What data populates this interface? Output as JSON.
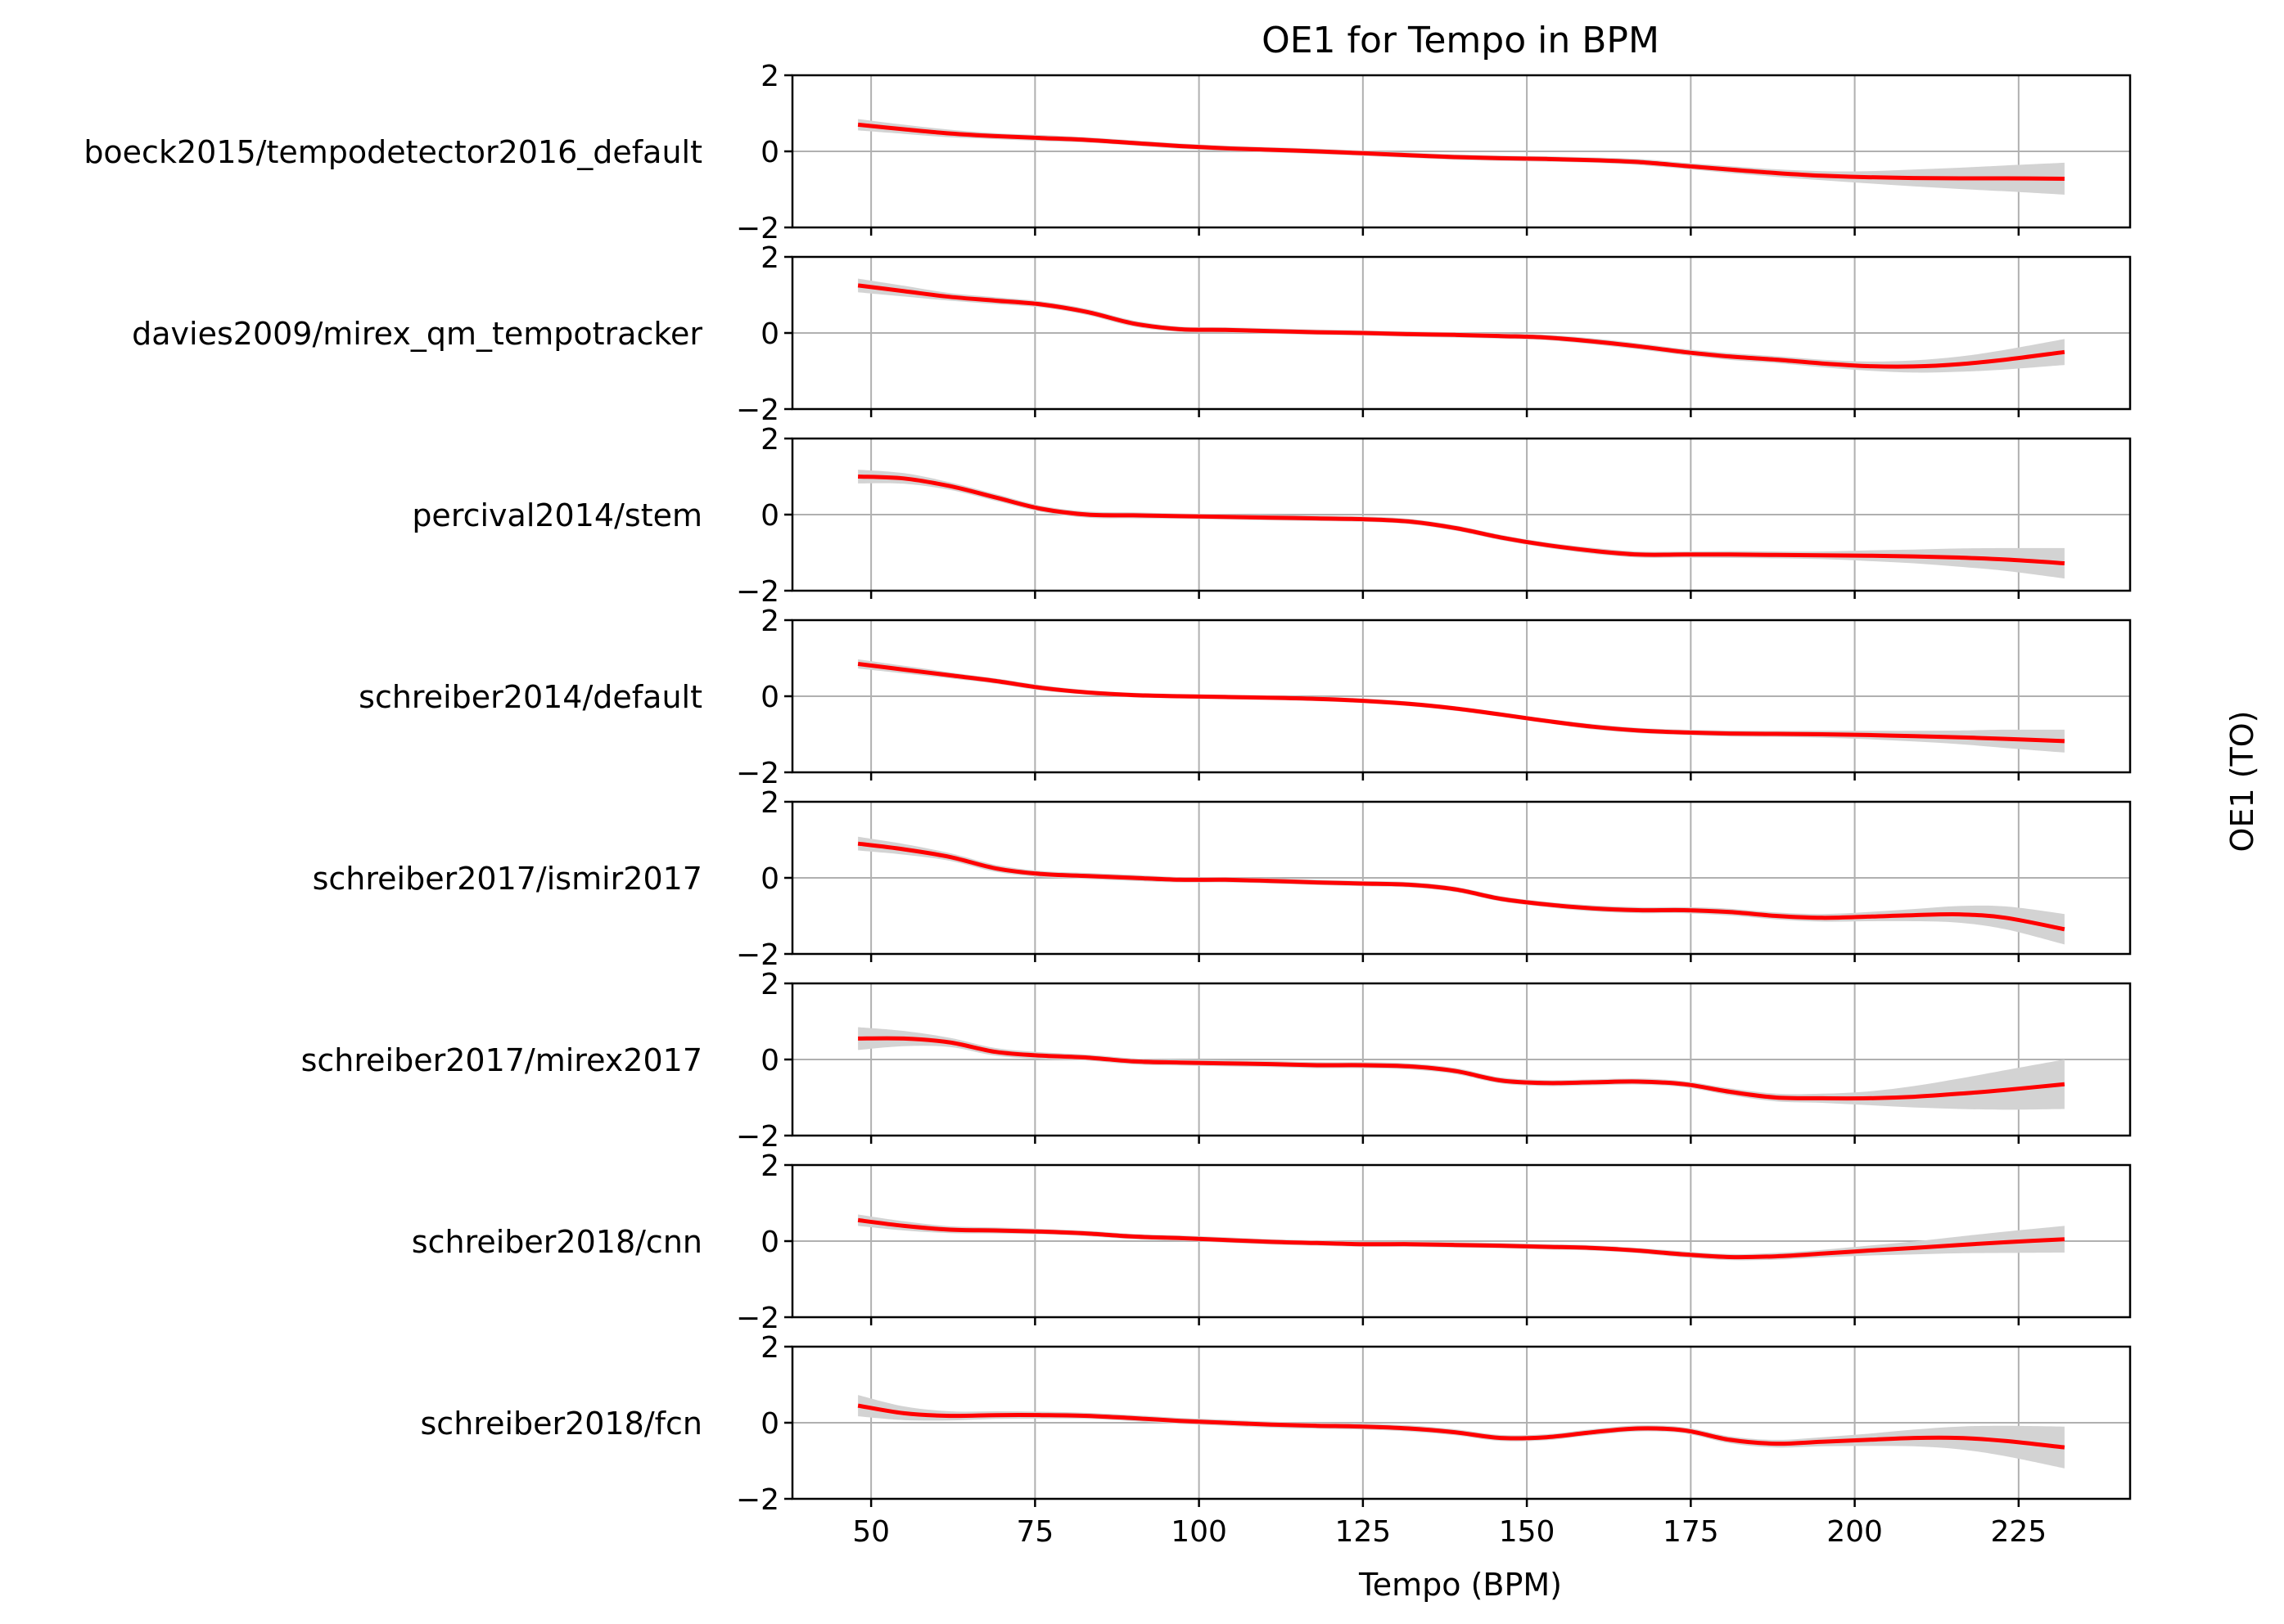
{
  "chart_data": {
    "type": "line",
    "title": "OE1 for Tempo in BPM",
    "xlabel": "Tempo (BPM)",
    "ylabel": "OE1 (TO)",
    "xlim": [
      38,
      242
    ],
    "ylim": [
      -2,
      2
    ],
    "xticks": [
      50,
      75,
      100,
      125,
      150,
      175,
      200,
      225
    ],
    "yticks": [
      -2,
      0,
      2
    ],
    "grid": true,
    "line_color": "#ff0000",
    "band_color": "#d3d3d3",
    "grid_color": "#b0b0b0",
    "x": [
      48,
      55,
      62,
      69,
      76,
      83,
      90,
      97,
      104,
      111,
      118,
      125,
      132,
      139,
      146,
      153,
      160,
      167,
      174,
      181,
      188,
      195,
      202,
      209,
      216,
      223,
      232
    ],
    "panels": [
      {
        "name": "boeck2015/tempodetector2016_default",
        "y": [
          0.7,
          0.58,
          0.47,
          0.4,
          0.35,
          0.3,
          0.22,
          0.14,
          0.08,
          0.04,
          0.0,
          -0.05,
          -0.1,
          -0.15,
          -0.18,
          -0.2,
          -0.23,
          -0.28,
          -0.38,
          -0.48,
          -0.57,
          -0.64,
          -0.68,
          -0.7,
          -0.71,
          -0.71,
          -0.72
        ],
        "band": [
          0.15,
          0.12,
          0.1,
          0.08,
          0.08,
          0.07,
          0.07,
          0.07,
          0.07,
          0.07,
          0.07,
          0.07,
          0.07,
          0.07,
          0.07,
          0.07,
          0.07,
          0.08,
          0.08,
          0.09,
          0.1,
          0.12,
          0.16,
          0.22,
          0.28,
          0.34,
          0.42
        ]
      },
      {
        "name": "davies2009/mirex_qm_tempotracker",
        "y": [
          1.25,
          1.1,
          0.95,
          0.85,
          0.75,
          0.55,
          0.25,
          0.1,
          0.08,
          0.05,
          0.02,
          0.0,
          -0.03,
          -0.05,
          -0.08,
          -0.12,
          -0.22,
          -0.35,
          -0.5,
          -0.62,
          -0.7,
          -0.8,
          -0.87,
          -0.88,
          -0.82,
          -0.7,
          -0.5
        ],
        "band": [
          0.18,
          0.14,
          0.1,
          0.09,
          0.08,
          0.08,
          0.08,
          0.07,
          0.07,
          0.07,
          0.07,
          0.07,
          0.07,
          0.07,
          0.07,
          0.07,
          0.08,
          0.08,
          0.08,
          0.09,
          0.09,
          0.1,
          0.12,
          0.16,
          0.2,
          0.26,
          0.34
        ]
      },
      {
        "name": "percival2014/stem",
        "y": [
          1.0,
          0.95,
          0.75,
          0.45,
          0.15,
          0.0,
          -0.02,
          -0.04,
          -0.06,
          -0.08,
          -0.1,
          -0.12,
          -0.18,
          -0.35,
          -0.6,
          -0.8,
          -0.95,
          -1.05,
          -1.05,
          -1.05,
          -1.06,
          -1.07,
          -1.08,
          -1.1,
          -1.13,
          -1.18,
          -1.28
        ],
        "band": [
          0.18,
          0.14,
          0.1,
          0.09,
          0.08,
          0.08,
          0.08,
          0.07,
          0.07,
          0.07,
          0.07,
          0.07,
          0.07,
          0.07,
          0.07,
          0.07,
          0.08,
          0.08,
          0.08,
          0.09,
          0.09,
          0.1,
          0.14,
          0.18,
          0.24,
          0.3,
          0.4
        ]
      },
      {
        "name": "schreiber2014/default",
        "y": [
          0.85,
          0.7,
          0.55,
          0.4,
          0.22,
          0.1,
          0.03,
          0.0,
          -0.02,
          -0.04,
          -0.07,
          -0.12,
          -0.2,
          -0.32,
          -0.48,
          -0.65,
          -0.8,
          -0.9,
          -0.95,
          -0.98,
          -0.99,
          -1.0,
          -1.02,
          -1.05,
          -1.08,
          -1.12,
          -1.18
        ],
        "band": [
          0.12,
          0.1,
          0.08,
          0.07,
          0.07,
          0.06,
          0.06,
          0.06,
          0.06,
          0.06,
          0.06,
          0.06,
          0.06,
          0.06,
          0.06,
          0.06,
          0.07,
          0.07,
          0.07,
          0.08,
          0.08,
          0.09,
          0.11,
          0.14,
          0.18,
          0.24,
          0.3
        ]
      },
      {
        "name": "schreiber2017/ismir2017",
        "y": [
          0.9,
          0.75,
          0.55,
          0.25,
          0.1,
          0.05,
          0.0,
          -0.05,
          -0.05,
          -0.08,
          -0.12,
          -0.15,
          -0.18,
          -0.3,
          -0.55,
          -0.7,
          -0.8,
          -0.85,
          -0.85,
          -0.9,
          -1.0,
          -1.05,
          -1.02,
          -0.98,
          -0.96,
          -1.05,
          -1.35
        ],
        "band": [
          0.18,
          0.14,
          0.1,
          0.09,
          0.08,
          0.08,
          0.08,
          0.07,
          0.07,
          0.07,
          0.07,
          0.07,
          0.07,
          0.07,
          0.07,
          0.07,
          0.08,
          0.08,
          0.08,
          0.09,
          0.09,
          0.1,
          0.12,
          0.16,
          0.22,
          0.3,
          0.4
        ]
      },
      {
        "name": "schreiber2017/mirex2017",
        "y": [
          0.55,
          0.55,
          0.45,
          0.2,
          0.1,
          0.05,
          -0.05,
          -0.08,
          -0.1,
          -0.12,
          -0.15,
          -0.15,
          -0.18,
          -0.3,
          -0.55,
          -0.62,
          -0.6,
          -0.58,
          -0.65,
          -0.85,
          -1.0,
          -1.02,
          -1.02,
          -0.98,
          -0.9,
          -0.8,
          -0.65
        ],
        "band": [
          0.3,
          0.2,
          0.12,
          0.1,
          0.09,
          0.08,
          0.08,
          0.08,
          0.08,
          0.08,
          0.08,
          0.08,
          0.08,
          0.08,
          0.08,
          0.08,
          0.08,
          0.08,
          0.08,
          0.09,
          0.1,
          0.12,
          0.18,
          0.28,
          0.4,
          0.52,
          0.65
        ]
      },
      {
        "name": "schreiber2018/cnn",
        "y": [
          0.55,
          0.4,
          0.3,
          0.28,
          0.25,
          0.2,
          0.12,
          0.08,
          0.03,
          -0.02,
          -0.05,
          -0.08,
          -0.08,
          -0.1,
          -0.12,
          -0.15,
          -0.18,
          -0.25,
          -0.35,
          -0.42,
          -0.4,
          -0.33,
          -0.25,
          -0.18,
          -0.1,
          -0.03,
          0.05
        ],
        "band": [
          0.15,
          0.12,
          0.09,
          0.08,
          0.07,
          0.07,
          0.07,
          0.07,
          0.07,
          0.07,
          0.07,
          0.07,
          0.07,
          0.07,
          0.07,
          0.07,
          0.07,
          0.07,
          0.08,
          0.08,
          0.09,
          0.1,
          0.13,
          0.17,
          0.22,
          0.28,
          0.35
        ]
      },
      {
        "name": "schreiber2018/fcn",
        "y": [
          0.45,
          0.25,
          0.18,
          0.2,
          0.2,
          0.18,
          0.12,
          0.05,
          0.0,
          -0.05,
          -0.08,
          -0.1,
          -0.15,
          -0.25,
          -0.4,
          -0.38,
          -0.25,
          -0.15,
          -0.2,
          -0.45,
          -0.55,
          -0.5,
          -0.45,
          -0.4,
          -0.4,
          -0.48,
          -0.65
        ],
        "band": [
          0.28,
          0.18,
          0.12,
          0.1,
          0.09,
          0.08,
          0.08,
          0.08,
          0.08,
          0.08,
          0.08,
          0.08,
          0.08,
          0.08,
          0.08,
          0.08,
          0.08,
          0.08,
          0.08,
          0.09,
          0.1,
          0.12,
          0.16,
          0.22,
          0.3,
          0.4,
          0.55
        ]
      }
    ]
  }
}
